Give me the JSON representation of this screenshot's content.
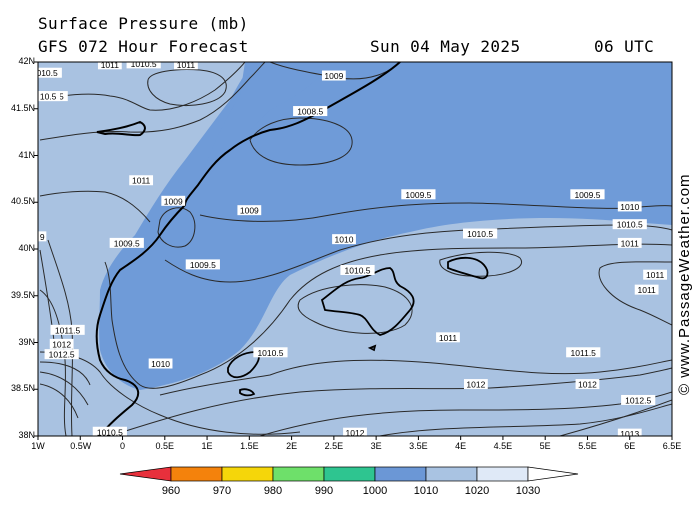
{
  "header": {
    "title": "Surface Pressure (mb)",
    "forecast": "GFS 072 Hour Forecast",
    "date": "Sun 04 May 2025",
    "time": "06 UTC"
  },
  "watermark": "© www.PassageWeather.com",
  "axes": {
    "lat_labels": [
      "42N",
      "41.5N",
      "41N",
      "40.5N",
      "40N",
      "39.5N",
      "39N",
      "38.5N",
      "38N"
    ],
    "lon_labels": [
      "1W",
      "0.5W",
      "0",
      "0.5E",
      "1E",
      "1.5E",
      "2E",
      "2.5E",
      "3E",
      "3.5E",
      "4E",
      "4.5E",
      "5E",
      "5.5E",
      "6E",
      "6.5E"
    ]
  },
  "isobar_labels": [
    {
      "text": "1010.5",
      "lon": -0.92,
      "lat": 41.88
    },
    {
      "text": "1011",
      "lon": -0.15,
      "lat": 41.97
    },
    {
      "text": "1010.5",
      "lon": 0.25,
      "lat": 41.98
    },
    {
      "text": "1011",
      "lon": 0.75,
      "lat": 41.97
    },
    {
      "text": "1009",
      "lon": 2.5,
      "lat": 41.85
    },
    {
      "text": "1008.5",
      "lon": 2.22,
      "lat": 41.47
    },
    {
      "text": "1010.5",
      "lon": -0.85,
      "lat": 41.63
    },
    {
      "text": "1011",
      "lon": 0.22,
      "lat": 40.73
    },
    {
      "text": "1009",
      "lon": 0.6,
      "lat": 40.51
    },
    {
      "text": "1009",
      "lon": 1.5,
      "lat": 40.41
    },
    {
      "text": "1009.5",
      "lon": 3.5,
      "lat": 40.58
    },
    {
      "text": "1009.5",
      "lon": 5.5,
      "lat": 40.58
    },
    {
      "text": "1010",
      "lon": 6.0,
      "lat": 40.45
    },
    {
      "text": "1010.5",
      "lon": 6.0,
      "lat": 40.26
    },
    {
      "text": "1011",
      "lon": 6.0,
      "lat": 40.06
    },
    {
      "text": "1011",
      "lon": 6.3,
      "lat": 39.72
    },
    {
      "text": "1011",
      "lon": 6.2,
      "lat": 39.56
    },
    {
      "text": "1010",
      "lon": 2.62,
      "lat": 40.1
    },
    {
      "text": "1010.5",
      "lon": 4.23,
      "lat": 40.16
    },
    {
      "text": "1010.5",
      "lon": 2.78,
      "lat": 39.77
    },
    {
      "text": "1009.5",
      "lon": 0.05,
      "lat": 40.06
    },
    {
      "text": "1009.5",
      "lon": 0.95,
      "lat": 39.83
    },
    {
      "text": "1011.5",
      "lon": -0.65,
      "lat": 39.13
    },
    {
      "text": "1012",
      "lon": -0.72,
      "lat": 38.98
    },
    {
      "text": "1012.5",
      "lon": -0.72,
      "lat": 38.87
    },
    {
      "text": "1010",
      "lon": 0.45,
      "lat": 38.77
    },
    {
      "text": "1010.5",
      "lon": 1.75,
      "lat": 38.89
    },
    {
      "text": "1011",
      "lon": 3.85,
      "lat": 39.05
    },
    {
      "text": "1011.5",
      "lon": 5.45,
      "lat": 38.89
    },
    {
      "text": "1012",
      "lon": 4.18,
      "lat": 38.55
    },
    {
      "text": "1012",
      "lon": 5.5,
      "lat": 38.55
    },
    {
      "text": "1012.5",
      "lon": 6.1,
      "lat": 38.38
    },
    {
      "text": "1013",
      "lon": 6.0,
      "lat": 38.02
    },
    {
      "text": "1012",
      "lon": 2.75,
      "lat": 38.03
    },
    {
      "text": "1010.5",
      "lon": -0.15,
      "lat": 38.04
    },
    {
      "text": "10.5",
      "lon": -0.88,
      "lat": 41.63
    },
    {
      "text": "9",
      "lon": -0.95,
      "lat": 40.13
    }
  ],
  "color_scale": {
    "labels": [
      "960",
      "970",
      "980",
      "990",
      "1000",
      "1010",
      "1020",
      "1030"
    ],
    "colors": [
      "#e8303c",
      "#f4820c",
      "#f5d60a",
      "#6ee06a",
      "#2ec590",
      "#6b97d6",
      "#a9c3e2",
      "#dfe9f7"
    ]
  },
  "colors": {
    "low_fill": "#6f9bd8",
    "high_fill": "#a9c2e1",
    "isobar": "#2a2a2a",
    "coast": "#000000"
  }
}
